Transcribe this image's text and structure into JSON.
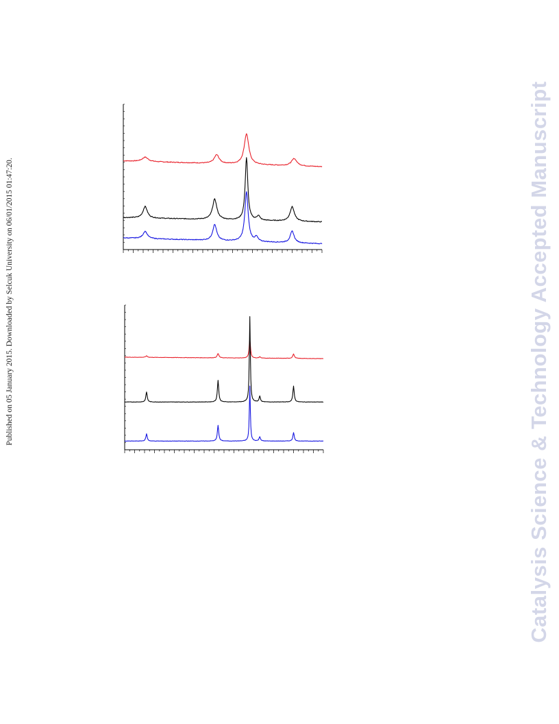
{
  "header": {
    "published_note": "Published on 05 January 2015. Downloaded by Selcuk University on 06/01/2015 01:47:20."
  },
  "watermark": {
    "text": "Catalysis Science & Technology Accepted Manuscript"
  },
  "colors": {
    "red": "#e8202a",
    "black": "#000000",
    "blue": "#1414e0",
    "watermark": "#d3d6e8"
  },
  "chart_data": [
    {
      "type": "line",
      "title": "",
      "xlabel": "",
      "ylabel": "",
      "xlim": [
        0,
        100
      ],
      "ylim": [
        0,
        100
      ],
      "grid": false,
      "legend": "none",
      "series": [
        {
          "color": "#e8202a",
          "baseline": [
            [
              0,
              61
            ],
            [
              100,
              57
            ]
          ],
          "peaks": [
            [
              11,
              3,
              1.8
            ],
            [
              47,
              6,
              1.5
            ],
            [
              62,
              21,
              1.4
            ],
            [
              86,
              5,
              1.6
            ]
          ]
        },
        {
          "color": "#000000",
          "baseline": [
            [
              0,
              22
            ],
            [
              100,
              19
            ]
          ],
          "peaks": [
            [
              11,
              8,
              1.3
            ],
            [
              46,
              14,
              1.3
            ],
            [
              62,
              43,
              0.8
            ],
            [
              68,
              3,
              0.9
            ],
            [
              85,
              10,
              1.3
            ]
          ]
        },
        {
          "color": "#1414e0",
          "baseline": [
            [
              0,
              8
            ],
            [
              100,
              4
            ]
          ],
          "peaks": [
            [
              11,
              5,
              1.3
            ],
            [
              46,
              11,
              1.2
            ],
            [
              62,
              34,
              1.0
            ],
            [
              67,
              3,
              0.9
            ],
            [
              85,
              8,
              1.2
            ]
          ]
        }
      ]
    },
    {
      "type": "line",
      "title": "",
      "xlabel": "",
      "ylabel": "",
      "xlim": [
        0,
        100
      ],
      "ylim": [
        0,
        100
      ],
      "grid": false,
      "legend": "none",
      "series": [
        {
          "color": "#e8202a",
          "baseline": [
            [
              0,
              64
            ],
            [
              100,
              63
            ]
          ],
          "peaks": [
            [
              11,
              1,
              0.5
            ],
            [
              47,
              3,
              0.5
            ],
            [
              63,
              13,
              0.4
            ],
            [
              68,
              1,
              0.4
            ],
            [
              85,
              3,
              0.5
            ]
          ]
        },
        {
          "color": "#000000",
          "baseline": [
            [
              0,
              33
            ],
            [
              100,
              33
            ]
          ],
          "peaks": [
            [
              11,
              7,
              0.4
            ],
            [
              47,
              15,
              0.4
            ],
            [
              63,
              59,
              0.3
            ],
            [
              68,
              4,
              0.4
            ],
            [
              85,
              11,
              0.4
            ]
          ]
        },
        {
          "color": "#1414e0",
          "baseline": [
            [
              0,
              6
            ],
            [
              100,
              6
            ]
          ],
          "peaks": [
            [
              11,
              5,
              0.4
            ],
            [
              47,
              11,
              0.4
            ],
            [
              63,
              38,
              0.3
            ],
            [
              68,
              3,
              0.4
            ],
            [
              85,
              6,
              0.4
            ]
          ]
        }
      ]
    }
  ]
}
